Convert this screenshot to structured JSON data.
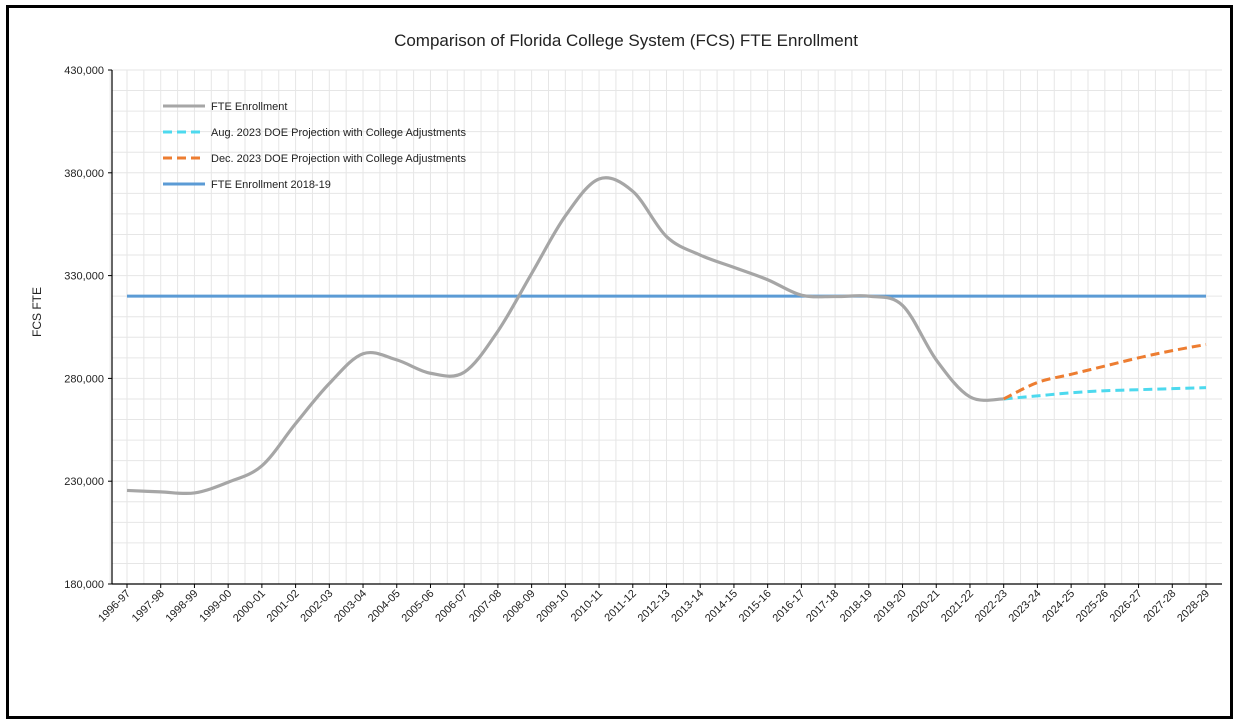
{
  "chart_data": {
    "type": "line",
    "title": "Comparison of Florida College System (FCS) FTE Enrollment",
    "xlabel": "",
    "ylabel": "FCS FTE",
    "ylim": [
      180000,
      430000
    ],
    "yticks": [
      180000,
      230000,
      280000,
      330000,
      380000,
      430000
    ],
    "ytick_labels": [
      "180,000",
      "230,000",
      "280,000",
      "330,000",
      "380,000",
      "430,000"
    ],
    "grid": true,
    "legend_position": "top-left",
    "categories": [
      "1996-97",
      "1997-98",
      "1998-99",
      "1999-00",
      "2000-01",
      "2001-02",
      "2002-03",
      "2003-04",
      "2004-05",
      "2005-06",
      "2006-07",
      "2007-08",
      "2008-09",
      "2009-10",
      "2010-11",
      "2011-12",
      "2012-13",
      "2013-14",
      "2014-15",
      "2015-16",
      "2016-17",
      "2017-18",
      "2018-19",
      "2019-20",
      "2020-21",
      "2021-22",
      "2022-23",
      "2023-24",
      "2024-25",
      "2025-26",
      "2026-27",
      "2027-28",
      "2028-29"
    ],
    "series": [
      {
        "name": "FTE Enrollment",
        "color": "#a6a6a6",
        "style": "solid",
        "values": [
          225500,
          224800,
          224300,
          229500,
          237500,
          258000,
          277500,
          292000,
          289000,
          282500,
          283000,
          303000,
          331000,
          359000,
          377000,
          371000,
          349000,
          340000,
          334000,
          328000,
          320500,
          319800,
          320000,
          315500,
          289000,
          271000,
          270000,
          null,
          null,
          null,
          null,
          null,
          null
        ]
      },
      {
        "name": "Aug. 2023 DOE Projection with College Adjustments",
        "color": "#4dd9ee",
        "style": "dashed",
        "values": [
          null,
          null,
          null,
          null,
          null,
          null,
          null,
          null,
          null,
          null,
          null,
          null,
          null,
          null,
          null,
          null,
          null,
          null,
          null,
          null,
          null,
          null,
          null,
          null,
          null,
          null,
          270000,
          271500,
          273000,
          274000,
          274500,
          275000,
          275500
        ]
      },
      {
        "name": "Dec. 2023 DOE Projection with College Adjustments",
        "color": "#ed7d31",
        "style": "dashed",
        "values": [
          null,
          null,
          null,
          null,
          null,
          null,
          null,
          null,
          null,
          null,
          null,
          null,
          null,
          null,
          null,
          null,
          null,
          null,
          null,
          null,
          null,
          null,
          null,
          null,
          null,
          null,
          270000,
          278000,
          282000,
          286000,
          290000,
          293500,
          296500
        ]
      },
      {
        "name": "FTE Enrollment 2018-19",
        "color": "#5b9bd5",
        "style": "solid",
        "values": [
          320000,
          320000,
          320000,
          320000,
          320000,
          320000,
          320000,
          320000,
          320000,
          320000,
          320000,
          320000,
          320000,
          320000,
          320000,
          320000,
          320000,
          320000,
          320000,
          320000,
          320000,
          320000,
          320000,
          320000,
          320000,
          320000,
          320000,
          320000,
          320000,
          320000,
          320000,
          320000,
          320000
        ]
      }
    ]
  }
}
